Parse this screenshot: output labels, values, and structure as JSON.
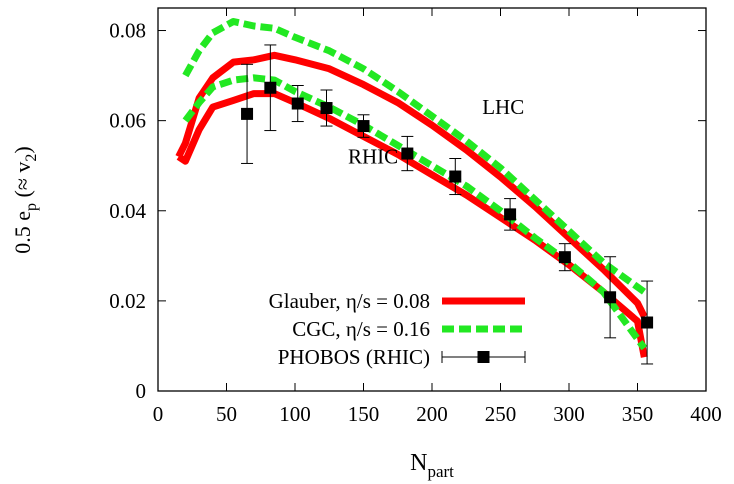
{
  "chart_data": {
    "type": "line",
    "title": "",
    "xlabel": {
      "main": "N",
      "sub": "part"
    },
    "ylabel": {
      "main": "0.5 e",
      "sub1": "p",
      "mid": " (≈ v",
      "sub2": "2",
      "end": ")"
    },
    "xlim": [
      0,
      400
    ],
    "ylim": [
      0,
      0.085
    ],
    "xticks": [
      0,
      50,
      100,
      150,
      200,
      250,
      300,
      350,
      400
    ],
    "xtick_labels": [
      "0",
      "50",
      "100",
      "150",
      "200",
      "250",
      "300",
      "350",
      "400"
    ],
    "yticks": [
      0,
      0.02,
      0.04,
      0.06,
      0.08
    ],
    "ytick_labels": [
      "0",
      "0.02",
      "0.04",
      "0.06",
      "0.08"
    ],
    "grid": false,
    "legend_position": "bottom-left",
    "series": [
      {
        "key": "glauber_lhc",
        "color": "#ff0000",
        "style": "solid",
        "x": [
          15,
          20,
          30,
          40,
          55,
          70,
          85,
          100,
          125,
          150,
          175,
          200,
          225,
          250,
          275,
          300,
          325,
          350,
          355
        ],
        "y": [
          0.052,
          0.055,
          0.065,
          0.0695,
          0.073,
          0.0735,
          0.0745,
          0.0735,
          0.0715,
          0.068,
          0.064,
          0.059,
          0.0535,
          0.0475,
          0.041,
          0.034,
          0.027,
          0.0195,
          0.0165
        ]
      },
      {
        "key": "glauber_rhic",
        "color": "#ff0000",
        "style": "solid",
        "x": [
          15,
          20,
          30,
          40,
          55,
          70,
          85,
          100,
          125,
          150,
          175,
          200,
          225,
          250,
          275,
          300,
          325,
          350,
          355
        ],
        "y": [
          0.052,
          0.051,
          0.058,
          0.063,
          0.0645,
          0.066,
          0.066,
          0.064,
          0.0605,
          0.0565,
          0.0525,
          0.048,
          0.0435,
          0.0385,
          0.0335,
          0.028,
          0.022,
          0.0155,
          0.0075
        ]
      },
      {
        "key": "cgc_lhc",
        "color": "#22e822",
        "style": "dashed",
        "x": [
          20,
          30,
          40,
          55,
          70,
          85,
          100,
          125,
          150,
          175,
          200,
          225,
          250,
          275,
          300,
          325,
          355
        ],
        "y": [
          0.07,
          0.0755,
          0.0795,
          0.082,
          0.081,
          0.0805,
          0.0785,
          0.0755,
          0.0715,
          0.0665,
          0.061,
          0.0555,
          0.0495,
          0.0425,
          0.0355,
          0.0285,
          0.022
        ]
      },
      {
        "key": "cgc_rhic",
        "color": "#22e822",
        "style": "dashed",
        "x": [
          20,
          30,
          40,
          55,
          70,
          85,
          100,
          125,
          150,
          175,
          200,
          225,
          250,
          275,
          300,
          325,
          355
        ],
        "y": [
          0.06,
          0.064,
          0.0675,
          0.069,
          0.0695,
          0.069,
          0.0665,
          0.063,
          0.059,
          0.0545,
          0.05,
          0.0455,
          0.04,
          0.034,
          0.0285,
          0.022,
          0.0095
        ]
      }
    ],
    "points": {
      "key": "phobos",
      "color": "#000000",
      "x": [
        65,
        82,
        102,
        123,
        150,
        182,
        217,
        257,
        297,
        330,
        357
      ],
      "y": [
        0.0615,
        0.0673,
        0.0638,
        0.0628,
        0.0588,
        0.0527,
        0.0476,
        0.0392,
        0.0297,
        0.0208,
        0.0152
      ],
      "err": [
        0.011,
        0.0095,
        0.004,
        0.004,
        0.0025,
        0.0038,
        0.004,
        0.0035,
        0.003,
        0.009,
        0.0092
      ]
    },
    "annotations": [
      {
        "text": "LHC",
        "x": 252,
        "y": 0.0615
      },
      {
        "text": "RHIC",
        "x": 157,
        "y": 0.0505
      }
    ],
    "legend": [
      {
        "label": "Glauber, η/s = 0.08",
        "type": "line-solid",
        "color": "#ff0000"
      },
      {
        "label": "CGC, η/s = 0.16",
        "type": "line-dashed",
        "color": "#22e822"
      },
      {
        "label": "PHOBOS (RHIC)",
        "type": "point-error",
        "color": "#000000"
      }
    ]
  }
}
